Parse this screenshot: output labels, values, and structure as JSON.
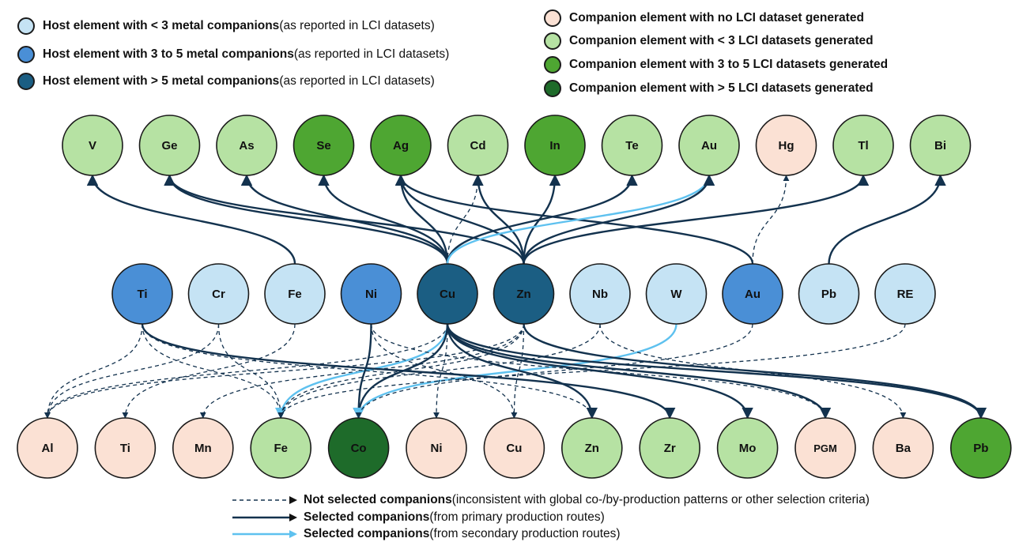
{
  "colors": {
    "host_lt3": "#c5e3f4",
    "host_3to5": "#4a8fd6",
    "host_gt5": "#1b5e83",
    "comp_none": "#fbe1d4",
    "comp_lt3": "#b6e2a3",
    "comp_3to5": "#4ea632",
    "comp_gt5": "#1e6b2a",
    "line_primary": "#13324e",
    "line_secondary": "#5ec1ef",
    "line_notselected": "#13324e"
  },
  "legend_hosts": [
    {
      "color_key": "host_lt3",
      "bold": "Host element with < 3 metal companions",
      "plain": " (as reported in LCI datasets)"
    },
    {
      "color_key": "host_3to5",
      "bold": "Host element with 3 to 5 metal companions",
      "plain": " (as reported in LCI datasets)"
    },
    {
      "color_key": "host_gt5",
      "bold": "Host element with > 5 metal companions",
      "plain": " (as reported in LCI datasets)"
    }
  ],
  "legend_companions": [
    {
      "color_key": "comp_none",
      "bold": "Companion element with no LCI dataset generated"
    },
    {
      "color_key": "comp_lt3",
      "bold": "Companion element with < 3 LCI datasets generated"
    },
    {
      "color_key": "comp_3to5",
      "bold": "Companion element with 3 to 5 LCI datasets generated"
    },
    {
      "color_key": "comp_gt5",
      "bold": "Companion element with > 5 LCI datasets generated"
    }
  ],
  "legend_lines": [
    {
      "style": "dashed",
      "bold": "Not selected companions",
      "plain": " (inconsistent with global co-/by-production patterns or other selection criteria)"
    },
    {
      "style": "primary",
      "bold": "Selected companions",
      "plain": " (from primary production routes)"
    },
    {
      "style": "secondary",
      "bold": "Selected companions",
      "plain": " (from secondary production routes)"
    }
  ],
  "top_nodes": [
    {
      "id": "t-V",
      "label": "V",
      "color_key": "comp_lt3"
    },
    {
      "id": "t-Ge",
      "label": "Ge",
      "color_key": "comp_lt3"
    },
    {
      "id": "t-As",
      "label": "As",
      "color_key": "comp_lt3"
    },
    {
      "id": "t-Se",
      "label": "Se",
      "color_key": "comp_3to5"
    },
    {
      "id": "t-Ag",
      "label": "Ag",
      "color_key": "comp_3to5"
    },
    {
      "id": "t-Cd",
      "label": "Cd",
      "color_key": "comp_lt3"
    },
    {
      "id": "t-In",
      "label": "In",
      "color_key": "comp_3to5"
    },
    {
      "id": "t-Te",
      "label": "Te",
      "color_key": "comp_lt3"
    },
    {
      "id": "t-Au",
      "label": "Au",
      "color_key": "comp_lt3"
    },
    {
      "id": "t-Hg",
      "label": "Hg",
      "color_key": "comp_none"
    },
    {
      "id": "t-Tl",
      "label": "Tl",
      "color_key": "comp_lt3"
    },
    {
      "id": "t-Bi",
      "label": "Bi",
      "color_key": "comp_lt3"
    }
  ],
  "mid_nodes": [
    {
      "id": "m-Ti",
      "label": "Ti",
      "color_key": "host_3to5"
    },
    {
      "id": "m-Cr",
      "label": "Cr",
      "color_key": "host_lt3"
    },
    {
      "id": "m-Fe",
      "label": "Fe",
      "color_key": "host_lt3"
    },
    {
      "id": "m-Ni",
      "label": "Ni",
      "color_key": "host_3to5"
    },
    {
      "id": "m-Cu",
      "label": "Cu",
      "color_key": "host_gt5"
    },
    {
      "id": "m-Zn",
      "label": "Zn",
      "color_key": "host_gt5"
    },
    {
      "id": "m-Nb",
      "label": "Nb",
      "color_key": "host_lt3"
    },
    {
      "id": "m-W",
      "label": "W",
      "color_key": "host_lt3"
    },
    {
      "id": "m-Au",
      "label": "Au",
      "color_key": "host_3to5"
    },
    {
      "id": "m-Pb",
      "label": "Pb",
      "color_key": "host_lt3"
    },
    {
      "id": "m-RE",
      "label": "RE",
      "color_key": "host_lt3"
    }
  ],
  "bottom_nodes": [
    {
      "id": "b-Al",
      "label": "Al",
      "color_key": "comp_none"
    },
    {
      "id": "b-Ti",
      "label": "Ti",
      "color_key": "comp_none"
    },
    {
      "id": "b-Mn",
      "label": "Mn",
      "color_key": "comp_none"
    },
    {
      "id": "b-Fe",
      "label": "Fe",
      "color_key": "comp_lt3"
    },
    {
      "id": "b-Co",
      "label": "Co",
      "color_key": "comp_gt5"
    },
    {
      "id": "b-Ni",
      "label": "Ni",
      "color_key": "comp_none"
    },
    {
      "id": "b-Cu",
      "label": "Cu",
      "color_key": "comp_none"
    },
    {
      "id": "b-Zn",
      "label": "Zn",
      "color_key": "comp_lt3"
    },
    {
      "id": "b-Zr",
      "label": "Zr",
      "color_key": "comp_lt3"
    },
    {
      "id": "b-Mo",
      "label": "Mo",
      "color_key": "comp_lt3"
    },
    {
      "id": "b-PGM",
      "label": "PGM",
      "color_key": "comp_none"
    },
    {
      "id": "b-Ba",
      "label": "Ba",
      "color_key": "comp_none"
    },
    {
      "id": "b-Pb",
      "label": "Pb",
      "color_key": "comp_3to5"
    }
  ],
  "edges": [
    {
      "from": "m-Fe",
      "to": "t-V",
      "style": "primary"
    },
    {
      "from": "m-Cu",
      "to": "t-Ge",
      "style": "primary"
    },
    {
      "from": "m-Zn",
      "to": "t-Ge",
      "style": "primary"
    },
    {
      "from": "m-Cu",
      "to": "t-As",
      "style": "primary"
    },
    {
      "from": "m-Cu",
      "to": "t-Se",
      "style": "primary"
    },
    {
      "from": "m-Cu",
      "to": "t-Ag",
      "style": "primary"
    },
    {
      "from": "m-Zn",
      "to": "t-Ag",
      "style": "primary"
    },
    {
      "from": "m-Au",
      "to": "t-Ag",
      "style": "primary"
    },
    {
      "from": "m-Cu",
      "to": "t-Cd",
      "style": "dashed"
    },
    {
      "from": "m-Zn",
      "to": "t-Cd",
      "style": "primary"
    },
    {
      "from": "m-Zn",
      "to": "t-In",
      "style": "primary"
    },
    {
      "from": "m-Cu",
      "to": "t-Te",
      "style": "primary"
    },
    {
      "from": "m-Cu",
      "to": "t-Au",
      "style": "secondary"
    },
    {
      "from": "m-Zn",
      "to": "t-Au",
      "style": "primary"
    },
    {
      "from": "m-Au",
      "to": "t-Hg",
      "style": "dashed"
    },
    {
      "from": "m-Zn",
      "to": "t-Tl",
      "style": "primary"
    },
    {
      "from": "m-Pb",
      "to": "t-Bi",
      "style": "primary"
    },
    {
      "from": "m-Ti",
      "to": "b-Al",
      "style": "dashed"
    },
    {
      "from": "m-Cr",
      "to": "b-Al",
      "style": "dashed"
    },
    {
      "from": "m-Cu",
      "to": "b-Al",
      "style": "dashed"
    },
    {
      "from": "m-Zn",
      "to": "b-Al",
      "style": "dashed"
    },
    {
      "from": "m-Fe",
      "to": "b-Ti",
      "style": "dashed"
    },
    {
      "from": "m-Zn",
      "to": "b-Mn",
      "style": "dashed"
    },
    {
      "from": "m-Ti",
      "to": "b-Fe",
      "style": "dashed"
    },
    {
      "from": "m-Cr",
      "to": "b-Fe",
      "style": "dashed"
    },
    {
      "from": "m-Cu",
      "to": "b-Fe",
      "style": "secondary"
    },
    {
      "from": "m-Zn",
      "to": "b-Fe",
      "style": "dashed"
    },
    {
      "from": "m-Nb",
      "to": "b-Fe",
      "style": "dashed"
    },
    {
      "from": "m-Ni",
      "to": "b-Co",
      "style": "primary"
    },
    {
      "from": "m-Cu",
      "to": "b-Co",
      "style": "primary"
    },
    {
      "from": "m-W",
      "to": "b-Co",
      "style": "secondary"
    },
    {
      "from": "m-Au",
      "to": "b-Co",
      "style": "dashed"
    },
    {
      "from": "m-Cu",
      "to": "b-Ni",
      "style": "dashed"
    },
    {
      "from": "m-Ni",
      "to": "b-Cu",
      "style": "dashed"
    },
    {
      "from": "m-Zn",
      "to": "b-Cu",
      "style": "dashed"
    },
    {
      "from": "m-Ti",
      "to": "b-Zn",
      "style": "dashed"
    },
    {
      "from": "m-Cu",
      "to": "b-Zn",
      "style": "primary"
    },
    {
      "from": "m-Ti",
      "to": "b-Zr",
      "style": "primary"
    },
    {
      "from": "m-Cu",
      "to": "b-Mo",
      "style": "primary"
    },
    {
      "from": "m-Ni",
      "to": "b-PGM",
      "style": "dashed"
    },
    {
      "from": "m-Cu",
      "to": "b-PGM",
      "style": "primary"
    },
    {
      "from": "m-Nb",
      "to": "b-Ba",
      "style": "dashed"
    },
    {
      "from": "m-RE",
      "to": "b-Fe",
      "style": "dashed"
    },
    {
      "from": "m-Cu",
      "to": "b-Pb",
      "style": "primary"
    },
    {
      "from": "m-Zn",
      "to": "b-Pb",
      "style": "primary"
    }
  ]
}
